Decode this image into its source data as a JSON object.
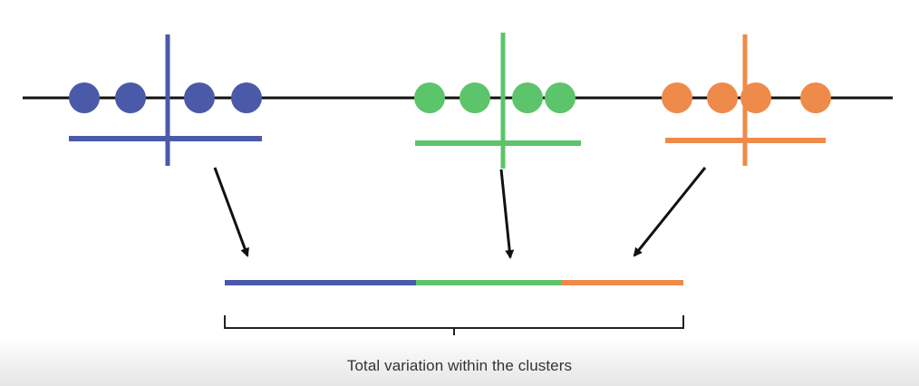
{
  "caption": "Total variation within the clusters",
  "colors": {
    "axis": "#111111",
    "arrow": "#111111",
    "bracket": "#222222",
    "clusters": [
      "#4a5aa8",
      "#5cc46a",
      "#ee8a4a"
    ]
  },
  "clusters": [
    {
      "color_name": "blue",
      "points": 4
    },
    {
      "color_name": "green",
      "points": 4
    },
    {
      "color_name": "orange",
      "points": 4
    }
  ]
}
